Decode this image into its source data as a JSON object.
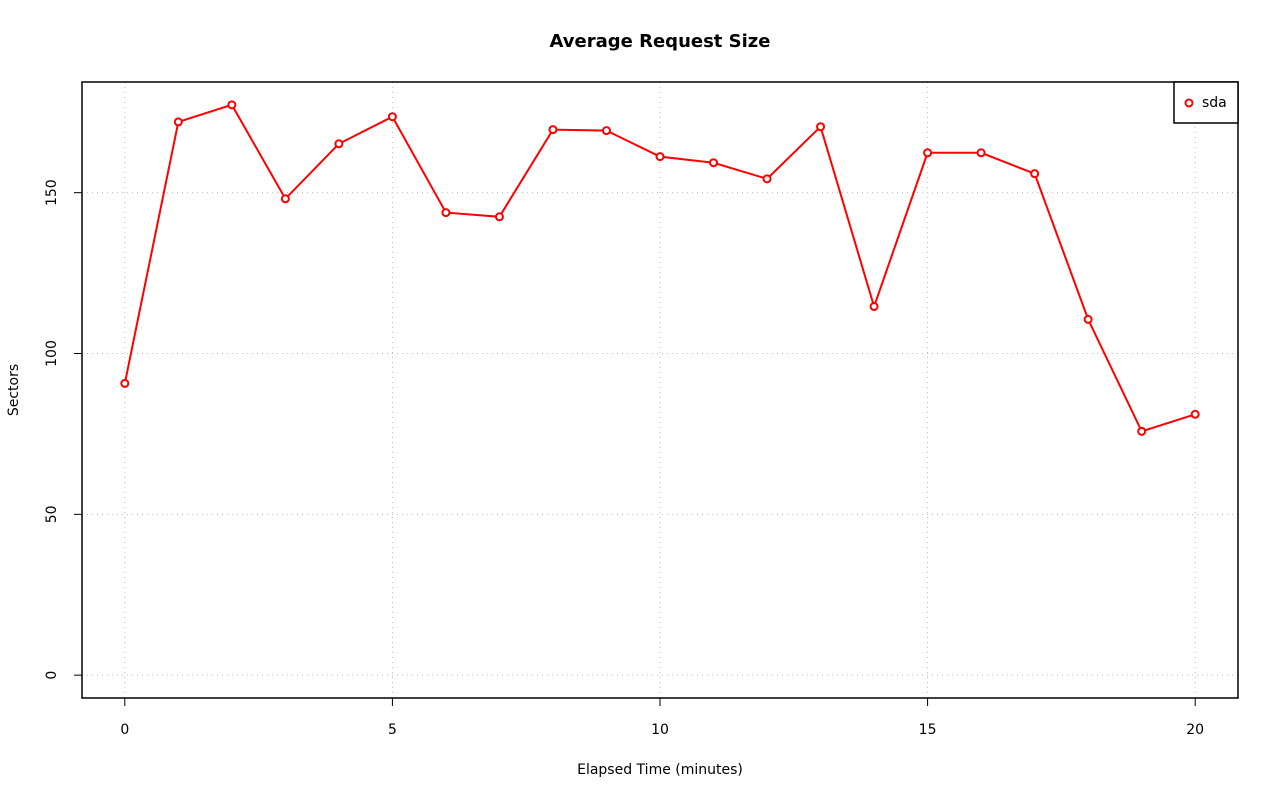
{
  "chart_data": {
    "type": "line",
    "title": "Average Request Size",
    "x_label": "Elapsed Time (minutes)",
    "y_label": "Sectors",
    "x": [
      0,
      1,
      2,
      3,
      4,
      5,
      6,
      7,
      8,
      9,
      10,
      11,
      12,
      13,
      14,
      15,
      16,
      17,
      18,
      19,
      20
    ],
    "series": [
      {
        "name": "sda",
        "color": "#ff0000",
        "values": [
          90.7,
          172.0,
          177.3,
          148.1,
          165.2,
          173.6,
          143.8,
          142.5,
          169.6,
          169.3,
          161.2,
          159.3,
          154.3,
          170.5,
          114.6,
          162.4,
          162.4,
          155.9,
          110.6,
          75.8,
          81.1
        ]
      }
    ],
    "xlim": [
      -0.8,
      20.8
    ],
    "xticks": [
      0,
      5,
      10,
      15,
      20
    ],
    "ylim": [
      -7.1,
      184.4
    ],
    "yticks": [
      0,
      50,
      100,
      150
    ],
    "grid": true,
    "legend": "top-right"
  }
}
